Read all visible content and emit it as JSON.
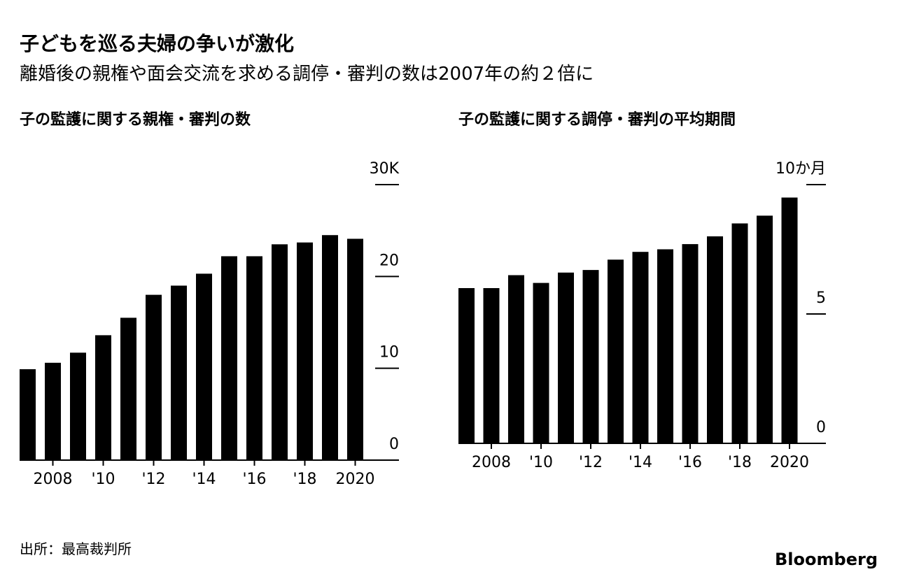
{
  "title": "子どもを巡る夫婦の争いが激化",
  "subtitle": "離婚後の親権や面会交流を求める調停・審判の数は2007年の約２倍に",
  "source": "出所：最高裁判所",
  "brand": "Bloomberg",
  "chart_data": [
    {
      "type": "bar",
      "title": "子の監護に関する親権・審判の数",
      "color": "#000000",
      "categories": [
        null,
        "2008",
        null,
        "'10",
        null,
        "'12",
        null,
        "'14",
        null,
        "'16",
        null,
        "'18",
        null,
        "2020"
      ],
      "values": [
        9.9,
        10.6,
        11.7,
        13.6,
        15.5,
        18.0,
        19.0,
        20.3,
        22.2,
        22.2,
        23.5,
        23.7,
        24.5,
        24.1
      ],
      "ylim": [
        0,
        30
      ],
      "yticks": [
        0,
        10,
        20,
        {
          "value": 30,
          "label": "30K"
        }
      ]
    },
    {
      "type": "bar",
      "title": "子の監護に関する調停・審判の平均期間",
      "color": "#000000",
      "categories": [
        null,
        "2008",
        null,
        "'10",
        null,
        "'12",
        null,
        "'14",
        null,
        "'16",
        null,
        "'18",
        null,
        "2020"
      ],
      "values": [
        6.0,
        6.0,
        6.5,
        6.2,
        6.6,
        6.7,
        7.1,
        7.4,
        7.5,
        7.7,
        8.0,
        8.5,
        8.8,
        9.5
      ],
      "ylim": [
        0,
        10
      ],
      "yticks": [
        0,
        5,
        {
          "value": 10,
          "label": "10か月"
        }
      ]
    }
  ]
}
